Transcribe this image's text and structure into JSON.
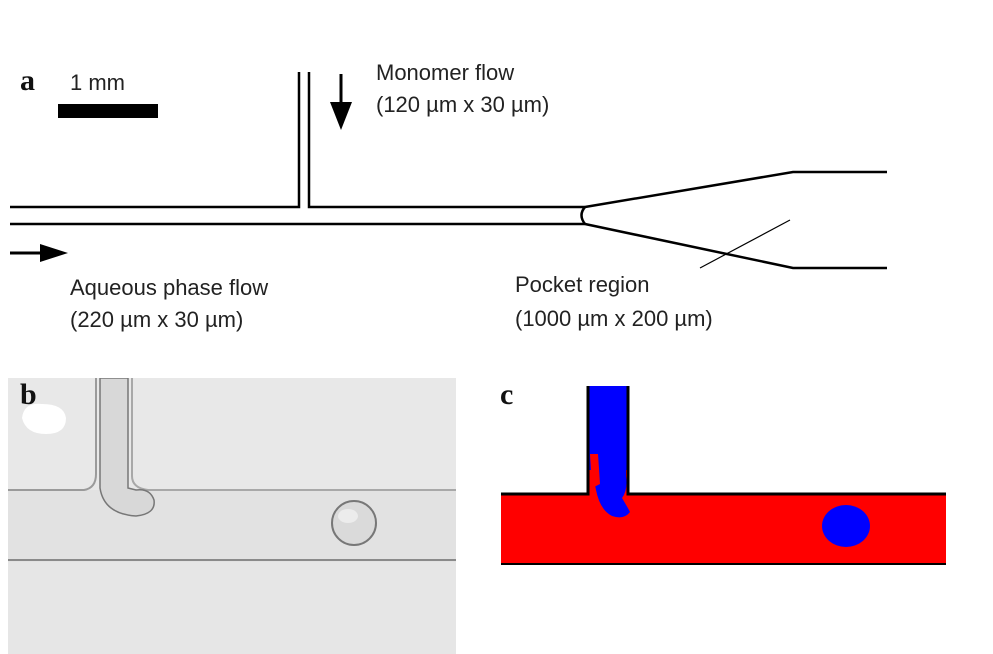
{
  "panel_a": {
    "letter": "a",
    "scale_label": "1 mm",
    "monomer_title": "Monomer flow",
    "monomer_dims": "(120 µm x 30 µm)",
    "aqueous_title": "Aqueous phase flow",
    "aqueous_dims": "(220 µm x 30 µm)",
    "pocket_title": "Pocket region",
    "pocket_dims": "(1000 µm x 200 µm)"
  },
  "panel_b": {
    "letter": "b"
  },
  "panel_c": {
    "letter": "c"
  },
  "colors": {
    "aqueous_phase": "#ff0000",
    "monomer_phase": "#0000ff",
    "outline": "#000000",
    "photo_bg": "#e9e9e9"
  }
}
